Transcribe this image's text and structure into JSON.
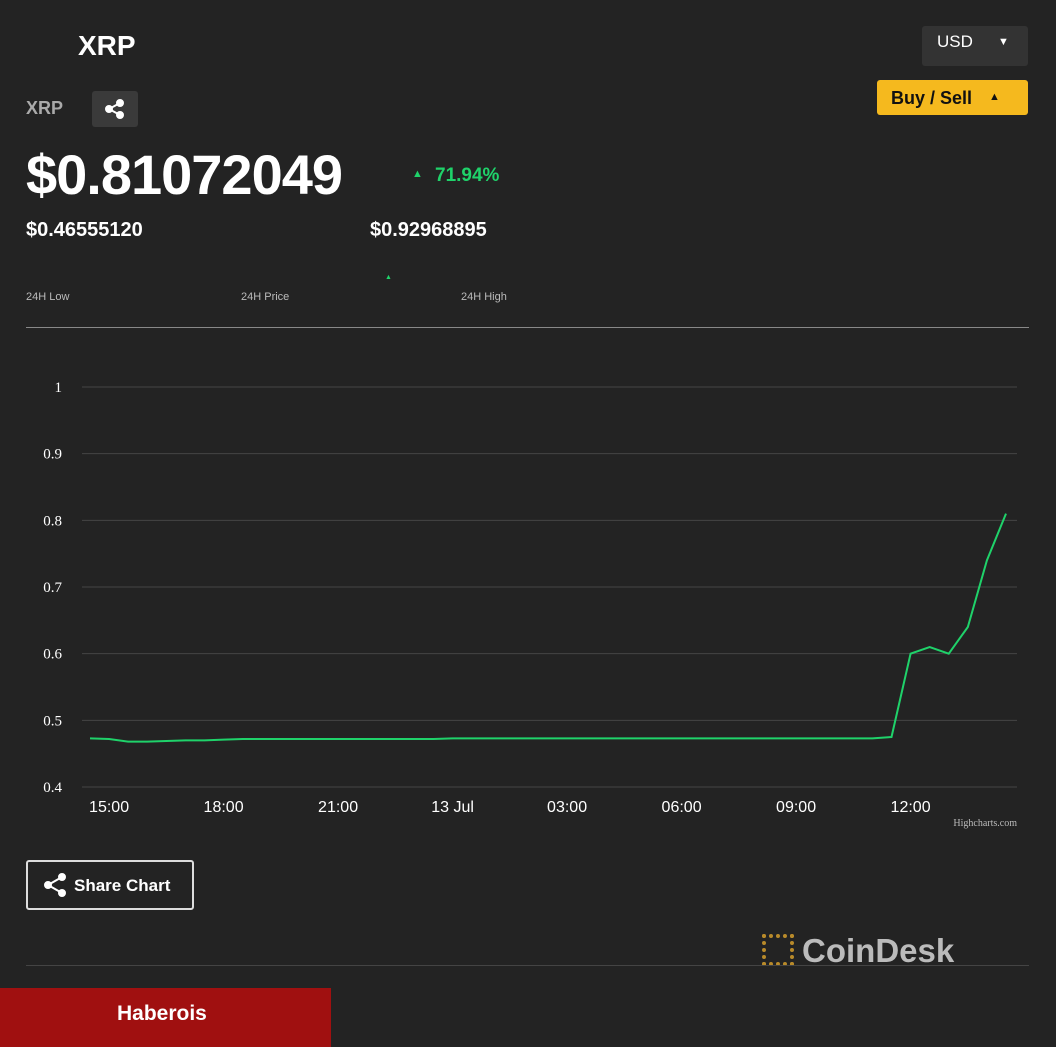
{
  "header": {
    "title": "XRP",
    "symbol": "XRP",
    "currency": "USD",
    "buy_sell": "Buy / Sell",
    "price": "$0.81072049",
    "change": "71.94%",
    "low": "$0.46555120",
    "high": "$0.92968895",
    "low_label": "24H Low",
    "price_label": "24H Price",
    "high_label": "24H High"
  },
  "chart_data": {
    "type": "line",
    "categories": [
      null,
      "15:00",
      null,
      null,
      null,
      null,
      null,
      "18:00",
      null,
      null,
      null,
      null,
      null,
      "21:00",
      null,
      null,
      null,
      null,
      null,
      "13 Jul",
      null,
      null,
      null,
      null,
      null,
      "03:00",
      null,
      null,
      null,
      null,
      null,
      "06:00",
      null,
      null,
      null,
      null,
      null,
      "09:00",
      null,
      null,
      null,
      null,
      null,
      "12:00",
      null,
      null,
      null,
      null,
      null
    ],
    "series": [
      {
        "color": "#1fd26a",
        "values": [
          0.473,
          0.472,
          0.468,
          0.468,
          0.469,
          0.47,
          0.47,
          0.471,
          0.472,
          0.472,
          0.472,
          0.472,
          0.472,
          0.472,
          0.472,
          0.472,
          0.472,
          0.472,
          0.472,
          0.473,
          0.473,
          0.473,
          0.473,
          0.473,
          0.473,
          0.473,
          0.473,
          0.473,
          0.473,
          0.473,
          0.473,
          0.473,
          0.473,
          0.473,
          0.473,
          0.473,
          0.473,
          0.473,
          0.473,
          0.473,
          0.473,
          0.473,
          0.475,
          0.6,
          0.61,
          0.6,
          0.64,
          0.74,
          0.81
        ]
      }
    ],
    "ylim": [
      0.4,
      1
    ],
    "yticks": [
      0.4,
      0.5,
      0.6,
      0.7,
      0.8,
      0.9,
      1
    ],
    "grid": true,
    "credit": "Highcharts.com"
  },
  "footer": {
    "share": "Share Chart",
    "brand": "CoinDesk",
    "banner": "Haberois"
  }
}
